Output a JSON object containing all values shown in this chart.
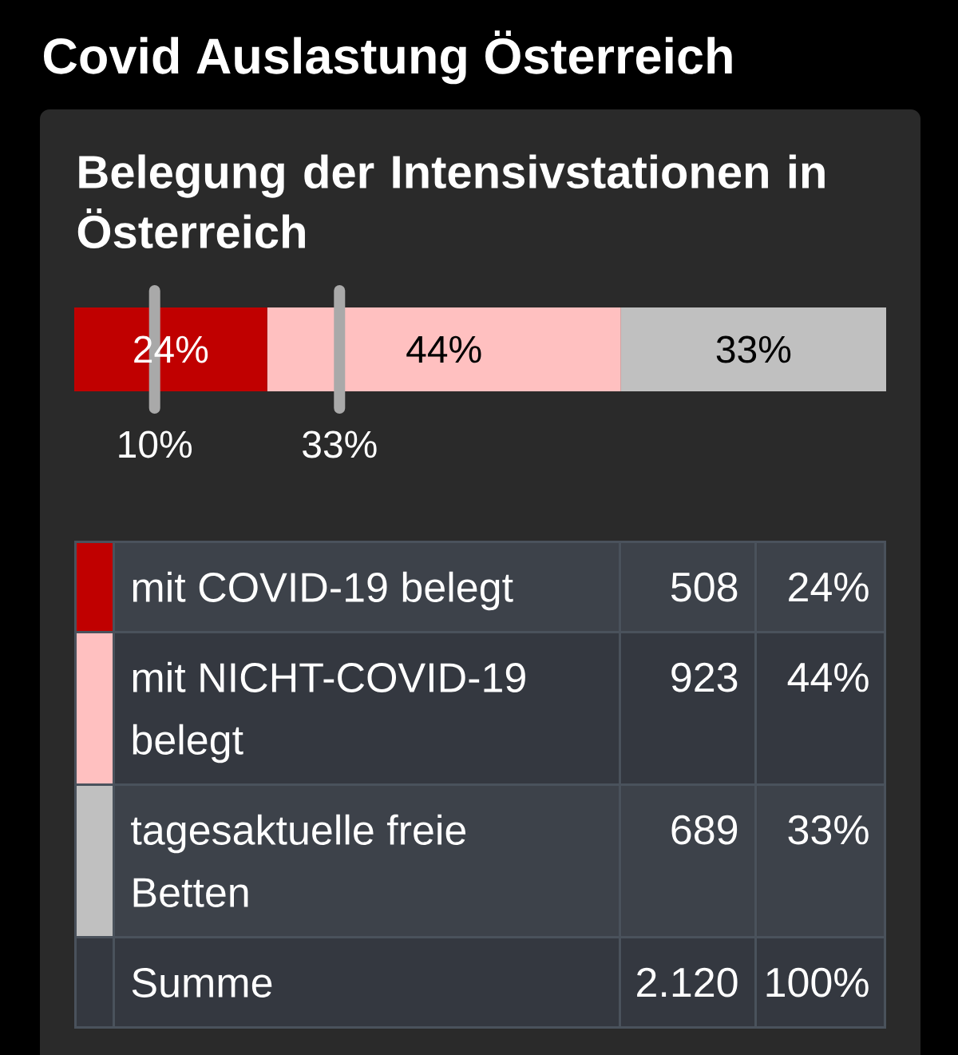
{
  "chart_data": {
    "type": "bar",
    "title": "Covid Auslastung Österreich",
    "subtitle": "Belegung der Intensivstationen in Österreich",
    "orientation": "horizontal",
    "stacked": true,
    "categories": [
      null
    ],
    "series": [
      {
        "name": "mit COVID-19 belegt",
        "color": "#c00000",
        "values": [
          24
        ],
        "value_labels": [
          "24%"
        ]
      },
      {
        "name": "mit NICHT-COVID-19 belegt",
        "color": "#ffc0c0",
        "values": [
          44
        ],
        "value_labels": [
          "44%"
        ]
      },
      {
        "name": "tagesaktuelle freie Betten",
        "color": "#c0c0c0",
        "values": [
          33
        ],
        "value_labels": [
          "33%"
        ]
      }
    ],
    "legend": "bottom",
    "ref_lines": [
      {
        "axis": "x",
        "value": 10,
        "label": "10%"
      },
      {
        "axis": "x",
        "value": 33,
        "label": "33%"
      }
    ],
    "annotations": [
      "508",
      "923",
      "689",
      "Summe",
      "2.120",
      "100%"
    ]
  }
}
